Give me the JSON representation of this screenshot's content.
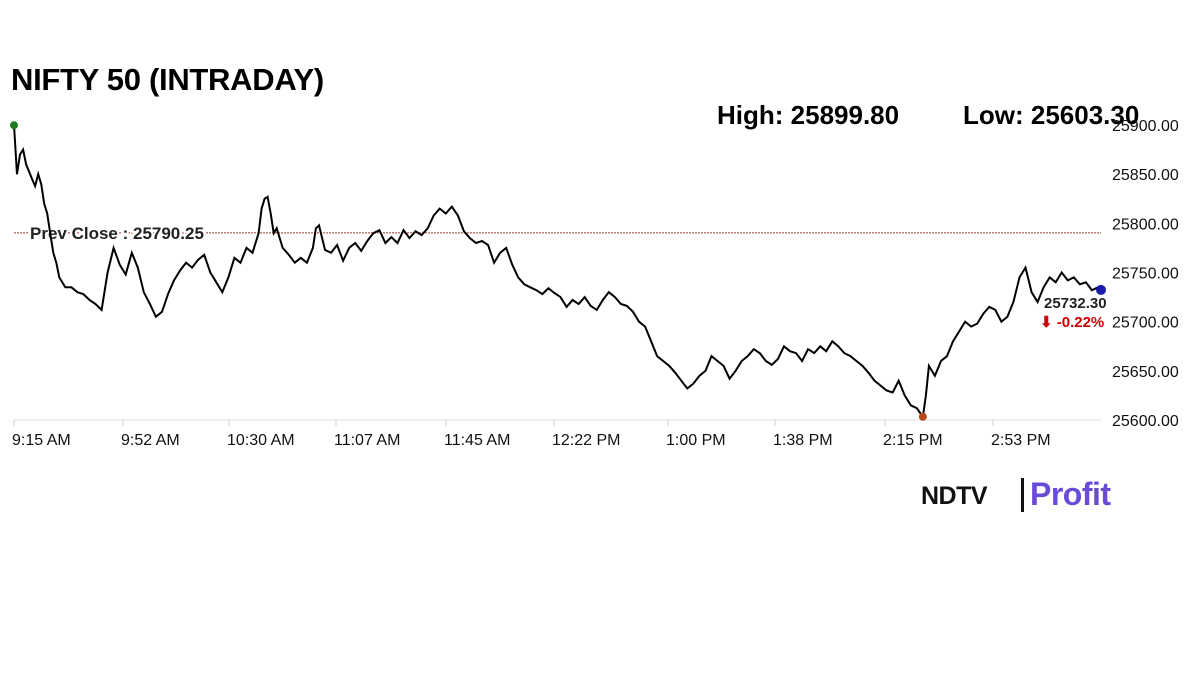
{
  "chart_data": {
    "type": "line",
    "title": "NIFTY 50 (INTRADAY)",
    "high_label": "High: 25899.80",
    "low_label": "Low: 25603.30",
    "prev_close_label": "Prev Close : 25790.25",
    "prev_close_value": 25790.25,
    "last_value_label": "25732.30",
    "last_change_label": "⬇ -0.22%",
    "ylim": [
      25600,
      25900
    ],
    "yticks": [
      "25900.00",
      "25850.00",
      "25800.00",
      "25750.00",
      "25700.00",
      "25650.00",
      "25600.00"
    ],
    "xticks": [
      "9:15 AM",
      "9:52 AM",
      "10:30 AM",
      "11:07 AM",
      "11:45 AM",
      "12:22 PM",
      "1:00 PM",
      "1:38 PM",
      "2:15 PM",
      "2:53 PM"
    ],
    "x_unit": "minutes after 9:15 AM",
    "x_range": [
      0,
      360
    ],
    "series": [
      {
        "values": [
          [
            0,
            25899.8
          ],
          [
            1,
            25850
          ],
          [
            2,
            25870
          ],
          [
            3,
            25875
          ],
          [
            4,
            25860
          ],
          [
            6,
            25845
          ],
          [
            7,
            25838
          ],
          [
            8,
            25850
          ],
          [
            9,
            25840
          ],
          [
            10,
            25820
          ],
          [
            11,
            25810
          ],
          [
            12,
            25790
          ],
          [
            13,
            25770
          ],
          [
            14,
            25760
          ],
          [
            15,
            25745
          ],
          [
            17,
            25735
          ],
          [
            19,
            25735
          ],
          [
            21,
            25730
          ],
          [
            23,
            25728
          ],
          [
            25,
            25722
          ],
          [
            27,
            25718
          ],
          [
            29,
            25712
          ],
          [
            31,
            25750
          ],
          [
            33,
            25775
          ],
          [
            35,
            25758
          ],
          [
            37,
            25748
          ],
          [
            39,
            25770
          ],
          [
            41,
            25755
          ],
          [
            43,
            25730
          ],
          [
            45,
            25718
          ],
          [
            47,
            25705
          ],
          [
            49,
            25710
          ],
          [
            51,
            25728
          ],
          [
            53,
            25742
          ],
          [
            55,
            25752
          ],
          [
            57,
            25760
          ],
          [
            59,
            25755
          ],
          [
            61,
            25763
          ],
          [
            63,
            25768
          ],
          [
            65,
            25750
          ],
          [
            67,
            25740
          ],
          [
            69,
            25730
          ],
          [
            71,
            25745
          ],
          [
            73,
            25765
          ],
          [
            75,
            25760
          ],
          [
            77,
            25775
          ],
          [
            79,
            25770
          ],
          [
            81,
            25790
          ],
          [
            82,
            25815
          ],
          [
            83,
            25825
          ],
          [
            84,
            25827
          ],
          [
            85,
            25810
          ],
          [
            86,
            25790
          ],
          [
            87,
            25795
          ],
          [
            89,
            25775
          ],
          [
            91,
            25768
          ],
          [
            93,
            25760
          ],
          [
            95,
            25765
          ],
          [
            97,
            25760
          ],
          [
            99,
            25775
          ],
          [
            100,
            25795
          ],
          [
            101,
            25798
          ],
          [
            103,
            25773
          ],
          [
            105,
            25770
          ],
          [
            107,
            25778
          ],
          [
            109,
            25762
          ],
          [
            111,
            25775
          ],
          [
            113,
            25780
          ],
          [
            115,
            25772
          ],
          [
            117,
            25782
          ],
          [
            119,
            25790
          ],
          [
            121,
            25793
          ],
          [
            123,
            25780
          ],
          [
            125,
            25786
          ],
          [
            127,
            25780
          ],
          [
            129,
            25793
          ],
          [
            131,
            25785
          ],
          [
            133,
            25792
          ],
          [
            135,
            25788
          ],
          [
            137,
            25795
          ],
          [
            139,
            25808
          ],
          [
            141,
            25815
          ],
          [
            143,
            25810
          ],
          [
            145,
            25817
          ],
          [
            147,
            25808
          ],
          [
            149,
            25792
          ],
          [
            151,
            25785
          ],
          [
            153,
            25780
          ],
          [
            155,
            25782
          ],
          [
            157,
            25778
          ],
          [
            159,
            25760
          ],
          [
            161,
            25770
          ],
          [
            163,
            25775
          ],
          [
            165,
            25758
          ],
          [
            167,
            25745
          ],
          [
            169,
            25738
          ],
          [
            171,
            25735
          ],
          [
            173,
            25732
          ],
          [
            175,
            25728
          ],
          [
            177,
            25734
          ],
          [
            179,
            25729
          ],
          [
            181,
            25725
          ],
          [
            183,
            25715
          ],
          [
            185,
            25722
          ],
          [
            187,
            25718
          ],
          [
            189,
            25725
          ],
          [
            191,
            25716
          ],
          [
            193,
            25712
          ],
          [
            195,
            25722
          ],
          [
            197,
            25730
          ],
          [
            199,
            25725
          ],
          [
            201,
            25718
          ],
          [
            203,
            25716
          ],
          [
            205,
            25710
          ],
          [
            207,
            25700
          ],
          [
            209,
            25695
          ],
          [
            211,
            25680
          ],
          [
            213,
            25665
          ],
          [
            215,
            25660
          ],
          [
            217,
            25655
          ],
          [
            219,
            25648
          ],
          [
            221,
            25640
          ],
          [
            223,
            25632
          ],
          [
            225,
            25637
          ],
          [
            227,
            25645
          ],
          [
            229,
            25650
          ],
          [
            231,
            25665
          ],
          [
            233,
            25660
          ],
          [
            235,
            25655
          ],
          [
            237,
            25642
          ],
          [
            239,
            25650
          ],
          [
            241,
            25660
          ],
          [
            243,
            25665
          ],
          [
            245,
            25672
          ],
          [
            247,
            25668
          ],
          [
            249,
            25660
          ],
          [
            251,
            25656
          ],
          [
            253,
            25662
          ],
          [
            255,
            25675
          ],
          [
            257,
            25670
          ],
          [
            259,
            25668
          ],
          [
            261,
            25660
          ],
          [
            263,
            25672
          ],
          [
            265,
            25668
          ],
          [
            267,
            25675
          ],
          [
            269,
            25670
          ],
          [
            271,
            25680
          ],
          [
            273,
            25675
          ],
          [
            275,
            25668
          ],
          [
            277,
            25665
          ],
          [
            279,
            25660
          ],
          [
            281,
            25655
          ],
          [
            283,
            25648
          ],
          [
            285,
            25640
          ],
          [
            287,
            25635
          ],
          [
            289,
            25630
          ],
          [
            291,
            25628
          ],
          [
            293,
            25640
          ],
          [
            295,
            25625
          ],
          [
            297,
            25615
          ],
          [
            299,
            25612
          ],
          [
            301,
            25603.3
          ],
          [
            302,
            25625
          ],
          [
            303,
            25655
          ],
          [
            305,
            25645
          ],
          [
            307,
            25660
          ],
          [
            309,
            25665
          ],
          [
            311,
            25680
          ],
          [
            313,
            25690
          ],
          [
            315,
            25700
          ],
          [
            317,
            25695
          ],
          [
            319,
            25698
          ],
          [
            321,
            25708
          ],
          [
            323,
            25715
          ],
          [
            325,
            25712
          ],
          [
            327,
            25700
          ],
          [
            329,
            25705
          ],
          [
            331,
            25720
          ],
          [
            333,
            25745
          ],
          [
            335,
            25755
          ],
          [
            337,
            25730
          ],
          [
            339,
            25720
          ],
          [
            341,
            25735
          ],
          [
            343,
            25745
          ],
          [
            345,
            25740
          ],
          [
            347,
            25750
          ],
          [
            349,
            25742
          ],
          [
            351,
            25745
          ],
          [
            353,
            25738
          ],
          [
            355,
            25740
          ],
          [
            357,
            25732
          ],
          [
            359,
            25735
          ],
          [
            360,
            25732.3
          ]
        ]
      }
    ],
    "grid": false,
    "colors": {
      "line": "#000000",
      "prev_close": "#a33a2a",
      "high_marker": "#1e7a1e",
      "low_marker": "#b5471b",
      "last_marker": "#1a1aa8",
      "change_down": "#cc0000"
    }
  },
  "logo": {
    "left": "NDTV",
    "right": "Profit"
  }
}
